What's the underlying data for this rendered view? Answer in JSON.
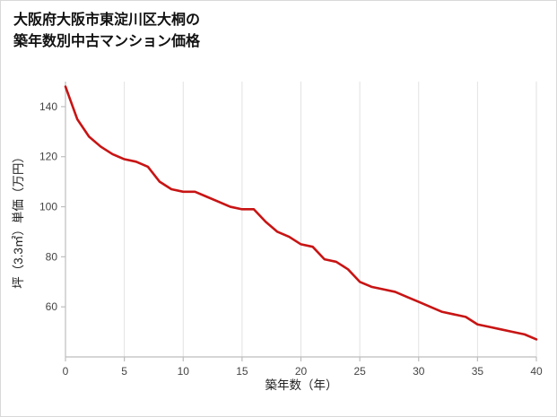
{
  "chart_data": {
    "type": "line",
    "title_lines": [
      "大阪府大阪市東淀川区大桐の",
      "築年数別中古マンション価格"
    ],
    "title": "大阪府大阪市東淀川区大桐の築年数別中古マンション価格",
    "xlabel": "築年数（年）",
    "ylabel": "坪（3.3㎡）単価（万円）",
    "x": [
      0,
      1,
      2,
      3,
      4,
      5,
      6,
      7,
      8,
      9,
      10,
      11,
      12,
      13,
      14,
      15,
      16,
      17,
      18,
      19,
      20,
      21,
      22,
      23,
      24,
      25,
      26,
      27,
      28,
      29,
      30,
      31,
      32,
      33,
      34,
      35,
      36,
      37,
      38,
      39,
      40
    ],
    "values": [
      148,
      135,
      128,
      124,
      121,
      119,
      118,
      116,
      110,
      107,
      106,
      106,
      104,
      102,
      100,
      99,
      99,
      94,
      90,
      88,
      85,
      84,
      79,
      78,
      75,
      70,
      68,
      67,
      66,
      64,
      62,
      60,
      58,
      57,
      56,
      53,
      52,
      51,
      50,
      49,
      47
    ],
    "xlim": [
      0,
      40
    ],
    "ylim": [
      40,
      150
    ],
    "xticks": [
      0,
      5,
      10,
      15,
      20,
      25,
      30,
      35,
      40
    ],
    "yticks": [
      60,
      80,
      100,
      120,
      140
    ],
    "grid": "vertical-only",
    "legend": "none",
    "line_color": "#c81414",
    "grid_color": "#e2e2e2",
    "axis_color": "#bdbdbd"
  }
}
